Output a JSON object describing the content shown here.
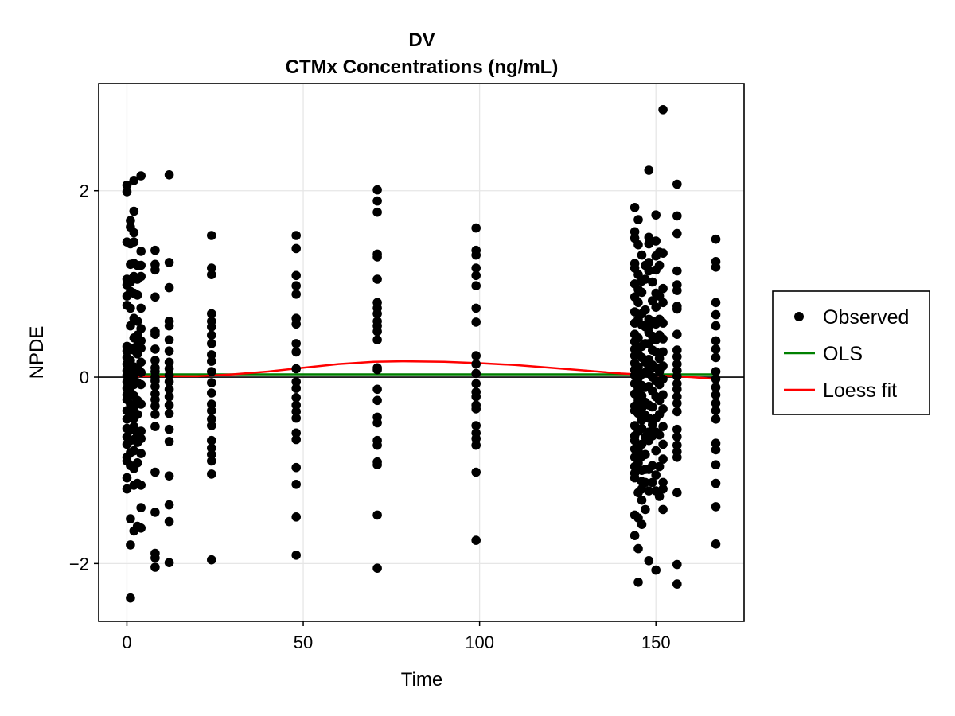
{
  "chart_data": {
    "type": "scatter",
    "title": "DV",
    "subtitle": "CTMx Concentrations (ng/mL)",
    "xlabel": "Time",
    "ylabel": "NPDE",
    "xlim": [
      -8,
      175
    ],
    "ylim": [
      -2.62,
      3.15
    ],
    "xticks": [
      0,
      50,
      100,
      150
    ],
    "yticks": [
      -2,
      0,
      2
    ],
    "grid": true,
    "legend_position": "right",
    "reference_line_y": 0,
    "series": [
      {
        "name": "Observed",
        "kind": "points",
        "color": "#000000",
        "columns": [
          {
            "x": 0,
            "y": [
              2.06,
              1.99,
              1.45,
              1.05,
              0.99,
              0.87,
              0.77,
              0.33,
              0.28,
              0.21,
              0.14,
              0.07,
              0.02,
              -0.05,
              -0.12,
              -0.19,
              -0.24,
              -0.36,
              -0.45,
              -0.55,
              -0.64,
              -0.72,
              -0.86,
              -0.9,
              -1.08,
              -1.2
            ]
          },
          {
            "x": 1,
            "y": [
              1.68,
              1.61,
              1.43,
              1.21,
              1.02,
              0.92,
              0.74,
              0.55,
              0.31,
              0.18,
              0.05,
              -0.03,
              -0.16,
              -0.29,
              -0.41,
              -0.57,
              -0.68,
              -0.81,
              -0.95,
              -1.52,
              -1.8,
              -2.37
            ]
          },
          {
            "x": 2,
            "y": [
              2.11,
              1.78,
              1.55,
              1.45,
              1.22,
              1.08,
              0.9,
              0.63,
              0.42,
              0.29,
              0.11,
              0.02,
              -0.08,
              -0.2,
              -0.33,
              -0.44,
              -0.53,
              -0.67,
              -0.79,
              -0.98,
              -1.16,
              -1.65
            ]
          },
          {
            "x": 3,
            "y": [
              1.2,
              1.05,
              0.88,
              0.6,
              0.45,
              0.34,
              0.25,
              0.09,
              -0.06,
              -0.25,
              -0.4,
              -0.61,
              -0.7,
              -0.92,
              -1.14,
              -1.6
            ]
          },
          {
            "x": 4,
            "y": [
              2.16,
              1.35,
              1.2,
              1.08,
              0.74,
              0.52,
              0.39,
              0.31,
              0.16,
              0.05,
              -0.08,
              -0.29,
              -0.58,
              -0.66,
              -0.82,
              -1.16,
              -1.4,
              -1.62
            ]
          },
          {
            "x": 8,
            "y": [
              1.36,
              1.21,
              1.15,
              0.86,
              0.49,
              0.46,
              0.3,
              0.18,
              0.1,
              0.06,
              0.0,
              -0.04,
              -0.1,
              -0.18,
              -0.24,
              -0.31,
              -0.4,
              -0.53,
              -1.02,
              -1.45,
              -1.89,
              -1.94,
              -2.04
            ]
          },
          {
            "x": 12,
            "y": [
              2.17,
              1.23,
              0.96,
              0.6,
              0.55,
              0.4,
              0.28,
              0.16,
              0.09,
              0.02,
              -0.05,
              -0.13,
              -0.21,
              -0.3,
              -0.39,
              -0.56,
              -0.69,
              -1.06,
              -1.37,
              -1.55,
              -1.99
            ]
          },
          {
            "x": 24,
            "y": [
              1.52,
              1.17,
              1.1,
              0.68,
              0.6,
              0.54,
              0.45,
              0.36,
              0.24,
              0.17,
              0.06,
              -0.06,
              -0.17,
              -0.29,
              -0.36,
              -0.45,
              -0.52,
              -0.68,
              -0.76,
              -0.83,
              -0.9,
              -1.04,
              -1.96
            ]
          },
          {
            "x": 48,
            "y": [
              1.52,
              1.38,
              1.09,
              0.98,
              0.89,
              0.63,
              0.57,
              0.36,
              0.27,
              0.09,
              -0.05,
              -0.12,
              -0.22,
              -0.3,
              -0.37,
              -0.44,
              -0.6,
              -0.67,
              -0.97,
              -1.15,
              -1.5,
              -1.91
            ]
          },
          {
            "x": 71,
            "y": [
              2.01,
              1.89,
              1.77,
              1.32,
              1.29,
              1.05,
              0.8,
              0.74,
              0.68,
              0.6,
              0.55,
              0.49,
              0.4,
              0.1,
              0.08,
              -0.13,
              -0.25,
              -0.43,
              -0.49,
              -0.68,
              -0.73,
              -0.91,
              -0.94,
              -1.48,
              -2.05
            ]
          },
          {
            "x": 99,
            "y": [
              1.6,
              1.36,
              1.31,
              1.17,
              1.09,
              0.98,
              0.74,
              0.59,
              0.23,
              0.14,
              0.04,
              -0.07,
              -0.16,
              -0.21,
              -0.3,
              -0.34,
              -0.52,
              -0.6,
              -0.66,
              -0.73,
              -1.02,
              -1.75
            ]
          },
          {
            "x": 144,
            "y": [
              1.82,
              1.56,
              1.49,
              1.22,
              1.17,
              1.0,
              0.86,
              0.7,
              0.58,
              0.46,
              0.38,
              0.3,
              0.23,
              0.15,
              0.08,
              0.02,
              -0.07,
              -0.18,
              -0.31,
              -0.36,
              -0.52,
              -0.63,
              -0.68,
              -0.77,
              -0.86,
              -0.96,
              -1.03,
              -1.08,
              -1.48,
              -1.7
            ]
          },
          {
            "x": 145,
            "y": [
              1.69,
              1.42,
              1.1,
              0.94,
              0.8,
              0.62,
              0.42,
              0.25,
              0.11,
              -0.01,
              -0.12,
              -0.25,
              -0.39,
              -0.58,
              -0.79,
              -0.92,
              -1.24,
              -1.51,
              -1.84,
              -2.2
            ]
          },
          {
            "x": 146,
            "y": [
              1.31,
              1.03,
              0.91,
              0.68,
              0.56,
              0.33,
              0.21,
              0.03,
              -0.09,
              -0.2,
              -0.33,
              -0.46,
              -0.55,
              -0.72,
              -0.85,
              -1.0,
              -1.12,
              -1.2,
              -1.32,
              -1.58
            ]
          },
          {
            "x": 147,
            "y": [
              1.2,
              1.05,
              0.72,
              0.54,
              0.36,
              0.16,
              0.05,
              -0.11,
              -0.27,
              -0.41,
              -0.64,
              -0.83,
              -0.99,
              -1.13,
              -1.42
            ]
          },
          {
            "x": 148,
            "y": [
              2.22,
              1.5,
              1.43,
              1.23,
              1.14,
              0.62,
              0.55,
              0.48,
              0.36,
              0.19,
              0.11,
              0.04,
              -0.1,
              -0.3,
              -0.44,
              -0.59,
              -0.68,
              -0.99,
              -1.22,
              -1.97
            ]
          },
          {
            "x": 149,
            "y": [
              1.02,
              0.82,
              0.6,
              0.44,
              0.29,
              0.13,
              0.0,
              -0.15,
              -0.32,
              -0.51,
              -0.63,
              -0.95,
              -1.13
            ]
          },
          {
            "x": 150,
            "y": [
              1.74,
              1.46,
              1.3,
              1.15,
              0.9,
              0.75,
              0.57,
              0.4,
              0.27,
              0.1,
              -0.04,
              -0.21,
              -0.44,
              -0.59,
              -0.79,
              -1.05,
              -1.22,
              -2.07
            ]
          },
          {
            "x": 151,
            "y": [
              1.34,
              1.2,
              0.87,
              0.62,
              0.45,
              0.2,
              0.06,
              -0.08,
              -0.25,
              -0.4,
              -0.62,
              -0.96,
              -1.28
            ]
          },
          {
            "x": 152,
            "y": [
              2.87,
              1.33,
              0.95,
              0.8,
              0.58,
              0.41,
              0.27,
              0.12,
              -0.02,
              -0.19,
              -0.34,
              -0.53,
              -0.72,
              -0.88,
              -1.13,
              -1.2,
              -1.42
            ]
          },
          {
            "x": 156,
            "y": [
              2.07,
              1.73,
              1.54,
              1.14,
              0.99,
              0.93,
              0.76,
              0.73,
              0.46,
              0.29,
              0.22,
              0.14,
              0.07,
              0.01,
              -0.07,
              -0.13,
              -0.21,
              -0.28,
              -0.37,
              -0.56,
              -0.64,
              -0.73,
              -0.8,
              -0.86,
              -1.24,
              -2.01,
              -2.22
            ]
          },
          {
            "x": 167,
            "y": [
              1.48,
              1.24,
              1.18,
              0.8,
              0.67,
              0.55,
              0.39,
              0.3,
              0.21,
              0.06,
              -0.02,
              -0.11,
              -0.19,
              -0.28,
              -0.36,
              -0.45,
              -0.71,
              -0.78,
              -0.94,
              -1.14,
              -1.39,
              -1.79
            ]
          }
        ]
      },
      {
        "name": "OLS",
        "kind": "line",
        "color": "#008000",
        "x": [
          0,
          167
        ],
        "y": [
          0.03,
          0.03
        ]
      },
      {
        "name": "Loess fit",
        "kind": "line",
        "color": "#ff0000",
        "x": [
          0,
          10,
          20,
          30,
          40,
          50,
          60,
          70,
          78,
          90,
          100,
          110,
          120,
          130,
          140,
          150,
          160,
          167
        ],
        "y": [
          0.01,
          0.01,
          0.01,
          0.03,
          0.06,
          0.1,
          0.14,
          0.165,
          0.17,
          0.165,
          0.15,
          0.13,
          0.1,
          0.07,
          0.04,
          0.02,
          0.0,
          -0.02
        ]
      }
    ]
  }
}
